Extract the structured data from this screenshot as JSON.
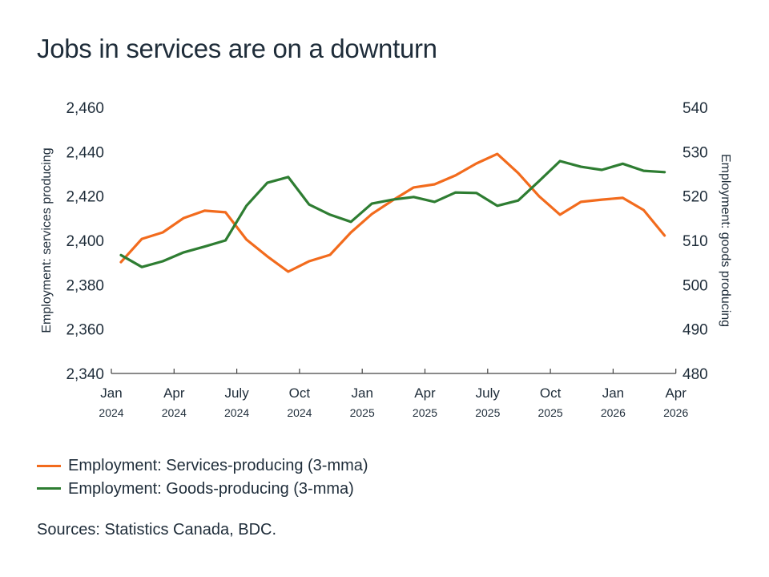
{
  "chart_data": {
    "type": "line",
    "title": "Jobs in services are on a downturn",
    "x": [
      "Jan 2024",
      "Feb 2024",
      "Mar 2024",
      "Apr 2024",
      "May 2024",
      "Jun 2024",
      "Jul 2024",
      "Aug 2024",
      "Sep 2024",
      "Oct 2024",
      "Nov 2024",
      "Dec 2024",
      "Jan 2025",
      "Feb 2025",
      "Mar 2025",
      "Apr 2025",
      "May 2025",
      "Jun 2025",
      "Jul 2025",
      "Aug 2025",
      "Sep 2025",
      "Oct 2025",
      "Nov 2025",
      "Dec 2025",
      "Jan 2026",
      "Feb 2026",
      "Mar 2026"
    ],
    "x_ticks": [
      {
        "month": "Jan",
        "year": "2024"
      },
      {
        "month": "Apr",
        "year": "2024"
      },
      {
        "month": "July",
        "year": "2024"
      },
      {
        "month": "Oct",
        "year": "2024"
      },
      {
        "month": "Jan",
        "year": "2025"
      },
      {
        "month": "Apr",
        "year": "2025"
      },
      {
        "month": "July",
        "year": "2025"
      },
      {
        "month": "Oct",
        "year": "2025"
      },
      {
        "month": "Jan",
        "year": "2026"
      },
      {
        "month": "Apr",
        "year": "2026"
      }
    ],
    "y_left": {
      "label": "Employment: services producing",
      "ylim": [
        2340,
        2460
      ],
      "ticks": [
        "2,340",
        "2,360",
        "2,380",
        "2,400",
        "2,420",
        "2,440",
        "2,460"
      ],
      "tick_values": [
        2340,
        2360,
        2380,
        2400,
        2420,
        2440,
        2460
      ]
    },
    "y_right": {
      "label": "Employment: goods producing",
      "ylim": [
        480,
        540
      ],
      "ticks": [
        "480",
        "490",
        "500",
        "510",
        "520",
        "530",
        "540"
      ],
      "tick_values": [
        480,
        490,
        500,
        510,
        520,
        530,
        540
      ]
    },
    "series": [
      {
        "name": "Employment: Services-producing (3-mma)",
        "axis": "left",
        "color": "#f26b1d",
        "values": [
          2390.2,
          2400.7,
          2403.6,
          2410.1,
          2413.4,
          2412.7,
          2400.4,
          2392.8,
          2385.9,
          2390.6,
          2393.5,
          2403.6,
          2411.9,
          2418.1,
          2423.9,
          2425.3,
          2429.3,
          2434.7,
          2439.0,
          2430.4,
          2419.9,
          2411.6,
          2417.4,
          2418.4,
          2419.2,
          2413.7,
          2402.2
        ]
      },
      {
        "name": "Employment: Goods-producing (3-mma)",
        "axis": "right",
        "color": "#2e7d32",
        "values": [
          506.7,
          504.0,
          505.3,
          507.3,
          508.6,
          510.0,
          517.8,
          523.0,
          524.3,
          518.1,
          515.8,
          514.2,
          518.3,
          519.2,
          519.8,
          518.7,
          520.8,
          520.7,
          517.8,
          519.0,
          523.4,
          527.9,
          526.6,
          525.9,
          527.3,
          525.7,
          525.4
        ]
      }
    ],
    "grid": false,
    "legend_position": "bottom-left",
    "source": "Sources: Statistics Canada, BDC."
  }
}
